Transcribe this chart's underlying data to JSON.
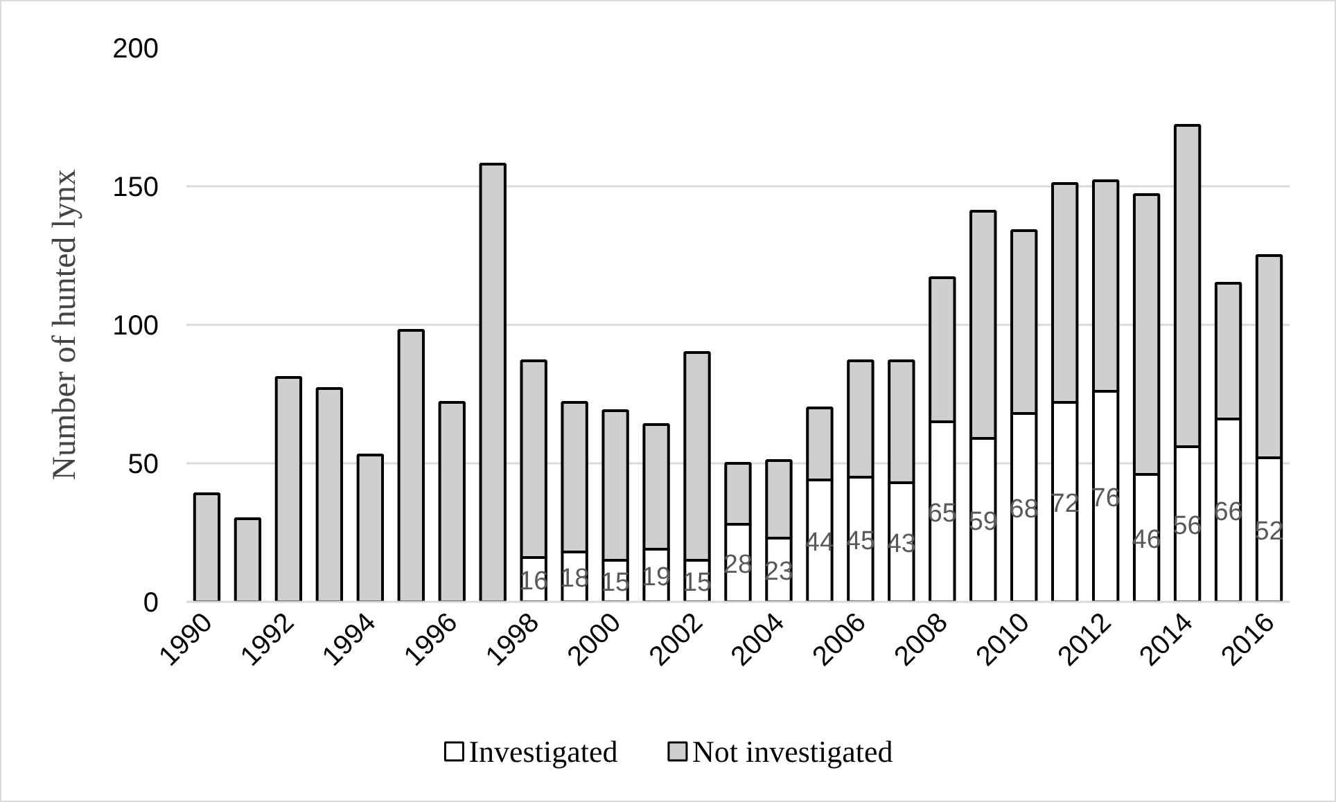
{
  "chart_data": {
    "type": "bar",
    "stacked": true,
    "categories": [
      "1990",
      null,
      "1992",
      null,
      "1994",
      null,
      "1996",
      null,
      "1998",
      null,
      "2000",
      null,
      "2002",
      null,
      "2004",
      null,
      "2006",
      null,
      "2008",
      null,
      "2010",
      null,
      "2012",
      null,
      "2014",
      null,
      "2016"
    ],
    "ylabel": "Number of hunted lynx",
    "ylim": [
      0,
      200
    ],
    "yticks": [
      0,
      50,
      100,
      150,
      200
    ],
    "grid": "y",
    "legend": "bottom",
    "series": [
      {
        "name": "Investigated",
        "color": "#ffffff",
        "values": [
          null,
          null,
          null,
          null,
          null,
          null,
          null,
          null,
          16,
          18,
          15,
          19,
          15,
          28,
          23,
          44,
          45,
          43,
          65,
          59,
          68,
          72,
          76,
          46,
          56,
          66,
          52
        ],
        "value_labels": [
          null,
          null,
          null,
          null,
          null,
          null,
          null,
          null,
          "16",
          "18",
          "15",
          "19",
          "15",
          "28",
          "23",
          "44",
          "45",
          "43",
          "65",
          "59",
          "68",
          "72",
          "76",
          "46",
          "56",
          "66",
          "52"
        ]
      },
      {
        "name": "Not investigated",
        "color": "#d0cece",
        "values": [
          39,
          30,
          81,
          77,
          53,
          98,
          72,
          158,
          71,
          54,
          54,
          45,
          75,
          22,
          28,
          26,
          42,
          44,
          52,
          82,
          66,
          79,
          76,
          101,
          116,
          49,
          73
        ]
      }
    ]
  }
}
